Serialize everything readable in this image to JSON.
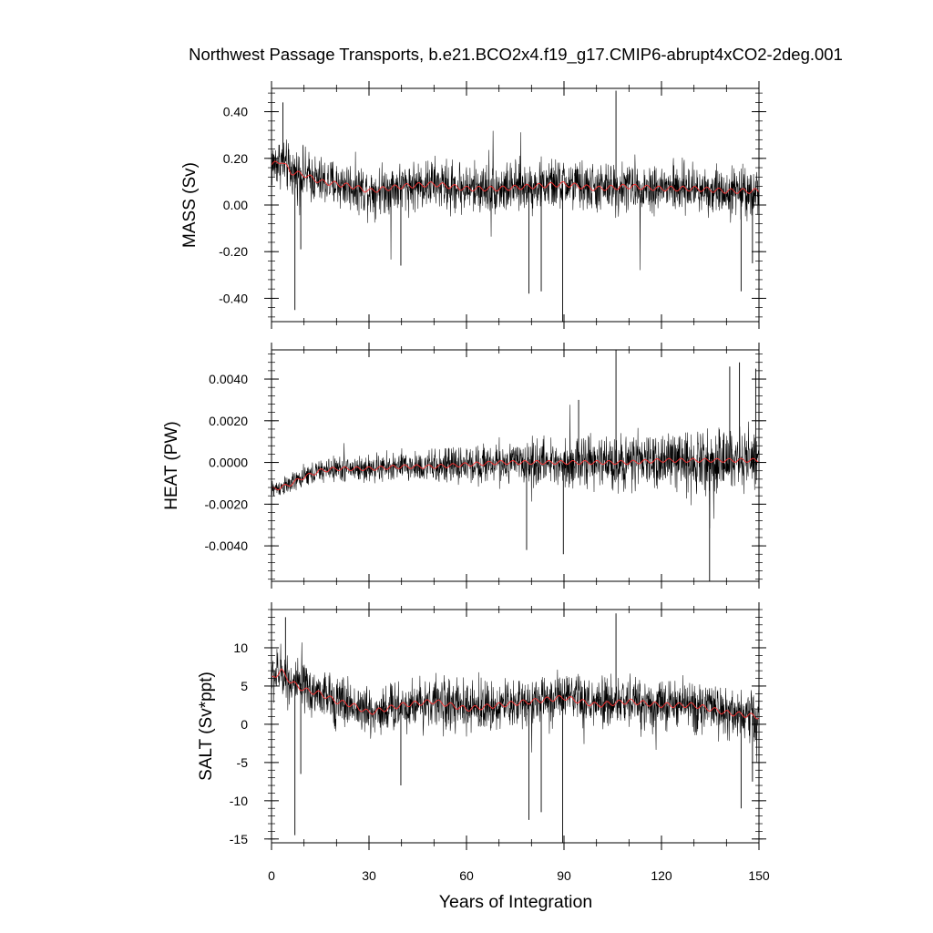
{
  "chart_data": {
    "type": "line",
    "title": "Northwest Passage Transports, b.e21.BCO2x4.f19_g17.CMIP6-abrupt4xCO2-2deg.001",
    "xlabel": "Years of Integration",
    "xlim": [
      0,
      150
    ],
    "x_ticks": [
      0,
      30,
      60,
      90,
      120,
      150
    ],
    "x_tick_labels": [
      "0",
      "30",
      "60",
      "90",
      "120",
      "150"
    ],
    "colors": {
      "monthly": "#000000",
      "annual_mean": "#ff3030",
      "frame": "#000000"
    },
    "panels": [
      {
        "id": "mass",
        "ylabel": "MASS (Sv)",
        "ylim": [
          -0.5,
          0.5
        ],
        "y_ticks": [
          0.4,
          0.2,
          0.0,
          -0.2,
          -0.4
        ],
        "y_tick_labels": [
          "0.40",
          "0.20",
          "0.00",
          "-0.20",
          "-0.40"
        ],
        "minor_step": 0.04,
        "series": [
          {
            "name": "monthly",
            "noise_amp": 0.09,
            "outlier_prob": 0.015,
            "outlier_scale": 2.6
          },
          {
            "name": "annual mean",
            "x": [
              0,
              3,
              6,
              10,
              15,
              20,
              25,
              30,
              40,
              50,
              60,
              70,
              80,
              90,
              100,
              110,
              120,
              130,
              140,
              150
            ],
            "values": [
              0.17,
              0.19,
              0.14,
              0.13,
              0.1,
              0.09,
              0.08,
              0.06,
              0.08,
              0.09,
              0.07,
              0.07,
              0.08,
              0.09,
              0.07,
              0.08,
              0.07,
              0.07,
              0.06,
              0.06
            ]
          }
        ],
        "spikes": [
          {
            "x": 3.5,
            "value": 0.44
          },
          {
            "x": 7.2,
            "value": -0.45
          },
          {
            "x": 9,
            "value": -0.19
          },
          {
            "x": 39.8,
            "value": -0.26
          },
          {
            "x": 79.2,
            "value": -0.38
          },
          {
            "x": 83,
            "value": -0.37
          },
          {
            "x": 89.6,
            "value": -0.5
          },
          {
            "x": 106,
            "value": 0.49
          },
          {
            "x": 144.5,
            "value": -0.37
          },
          {
            "x": 148,
            "value": -0.25
          }
        ]
      },
      {
        "id": "heat",
        "ylabel": "HEAT (PW)",
        "ylim": [
          -0.0057,
          0.0054
        ],
        "y_ticks": [
          0.004,
          0.002,
          0.0,
          -0.002,
          -0.004
        ],
        "y_tick_labels": [
          "0.0040",
          "0.0020",
          "0.0000",
          "-0.0020",
          "-0.0040"
        ],
        "minor_step": 0.0004,
        "series": [
          {
            "name": "monthly",
            "noise_amp": 0.0008,
            "noise_growth": 1.2,
            "outlier_prob": 0.012,
            "outlier_scale": 2.5
          },
          {
            "name": "annual mean",
            "x": [
              0,
              5,
              10,
              15,
              20,
              30,
              40,
              50,
              60,
              70,
              80,
              90,
              100,
              110,
              120,
              130,
              140,
              150
            ],
            "values": [
              -0.0013,
              -0.0011,
              -0.0007,
              -0.0004,
              -0.0003,
              -0.0003,
              -0.0002,
              -0.0002,
              -0.0001,
              0.0,
              0.0,
              0.0,
              0.0,
              0.0,
              0.0001,
              0.0001,
              0.0001,
              0.0001
            ]
          }
        ],
        "spikes": [
          {
            "x": 78.5,
            "value": -0.0042
          },
          {
            "x": 89.8,
            "value": -0.0044
          },
          {
            "x": 106,
            "value": 0.0054
          },
          {
            "x": 134.8,
            "value": -0.0057
          },
          {
            "x": 141,
            "value": 0.0046
          },
          {
            "x": 144,
            "value": 0.0048
          },
          {
            "x": 149,
            "value": 0.0045
          },
          {
            "x": 94.5,
            "value": 0.003
          }
        ]
      },
      {
        "id": "salt",
        "ylabel": "SALT (Sv*ppt)",
        "ylim": [
          -15.5,
          15
        ],
        "y_ticks": [
          10,
          5,
          0,
          -5,
          -10,
          -15
        ],
        "y_tick_labels": [
          "10",
          "5",
          "0",
          "-5",
          "-10",
          "-15"
        ],
        "minor_step": 1,
        "series": [
          {
            "name": "monthly",
            "noise_amp": 2.8,
            "outlier_prob": 0.015,
            "outlier_scale": 2.6
          },
          {
            "name": "annual mean",
            "x": [
              0,
              3,
              6,
              10,
              15,
              20,
              25,
              30,
              40,
              50,
              60,
              70,
              80,
              90,
              100,
              110,
              120,
              130,
              140,
              150
            ],
            "values": [
              6.0,
              7.0,
              5.5,
              4.5,
              4.0,
              3.0,
              2.5,
              1.5,
              2.5,
              3.0,
              2.0,
              2.5,
              3.0,
              3.5,
              2.5,
              3.0,
              2.5,
              2.5,
              1.5,
              1.0
            ]
          }
        ],
        "spikes": [
          {
            "x": 4.3,
            "value": 14
          },
          {
            "x": 7.2,
            "value": -14.5
          },
          {
            "x": 9,
            "value": -6.5
          },
          {
            "x": 39.8,
            "value": -8
          },
          {
            "x": 79.2,
            "value": -12.5
          },
          {
            "x": 83,
            "value": -11.5
          },
          {
            "x": 89.6,
            "value": -15.5
          },
          {
            "x": 106,
            "value": 14.5
          },
          {
            "x": 144.5,
            "value": -11
          },
          {
            "x": 148,
            "value": -7.5
          }
        ]
      }
    ]
  }
}
